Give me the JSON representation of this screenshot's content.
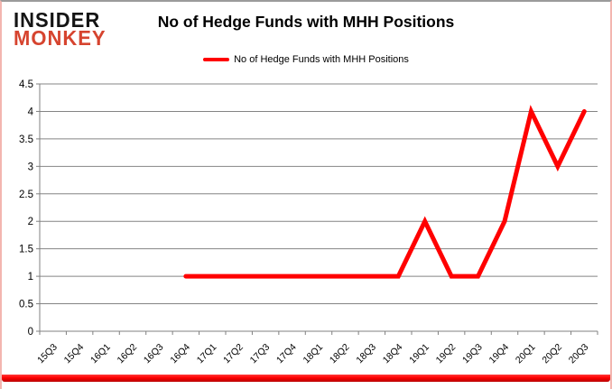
{
  "header": {
    "logo_line1": "INSIDER",
    "logo_line2": "MONKEY",
    "title": "No of Hedge Funds with MHH Positions"
  },
  "legend": {
    "label": "No of Hedge Funds with MHH Positions"
  },
  "colors": {
    "series_line": "#ff0000",
    "logo_dark": "#141414",
    "logo_accent": "#d6442f",
    "gridline": "#848484",
    "axis": "#808080",
    "label_text": "#000000",
    "bottom_bar": "#ff0000"
  },
  "chart_data": {
    "type": "line",
    "title": "No of Hedge Funds with MHH Positions",
    "categories": [
      "15Q3",
      "15Q4",
      "16Q1",
      "16Q2",
      "16Q3",
      "16Q4",
      "17Q1",
      "17Q2",
      "17Q3",
      "17Q4",
      "18Q1",
      "18Q2",
      "18Q3",
      "18Q4",
      "19Q1",
      "19Q2",
      "19Q3",
      "19Q4",
      "20Q1",
      "20Q2",
      "20Q3"
    ],
    "series": [
      {
        "name": "No of Hedge Funds with MHH Positions",
        "values": [
          null,
          null,
          null,
          null,
          null,
          1,
          1,
          1,
          1,
          1,
          1,
          1,
          1,
          1,
          2,
          1,
          1,
          2,
          4,
          3,
          4
        ]
      }
    ],
    "xlabel": "",
    "ylabel": "",
    "ylim": [
      0,
      4.5
    ],
    "yticks": [
      0,
      0.5,
      1,
      1.5,
      2,
      2.5,
      3,
      3.5,
      4,
      4.5
    ],
    "grid": true,
    "legend_position": "top"
  }
}
